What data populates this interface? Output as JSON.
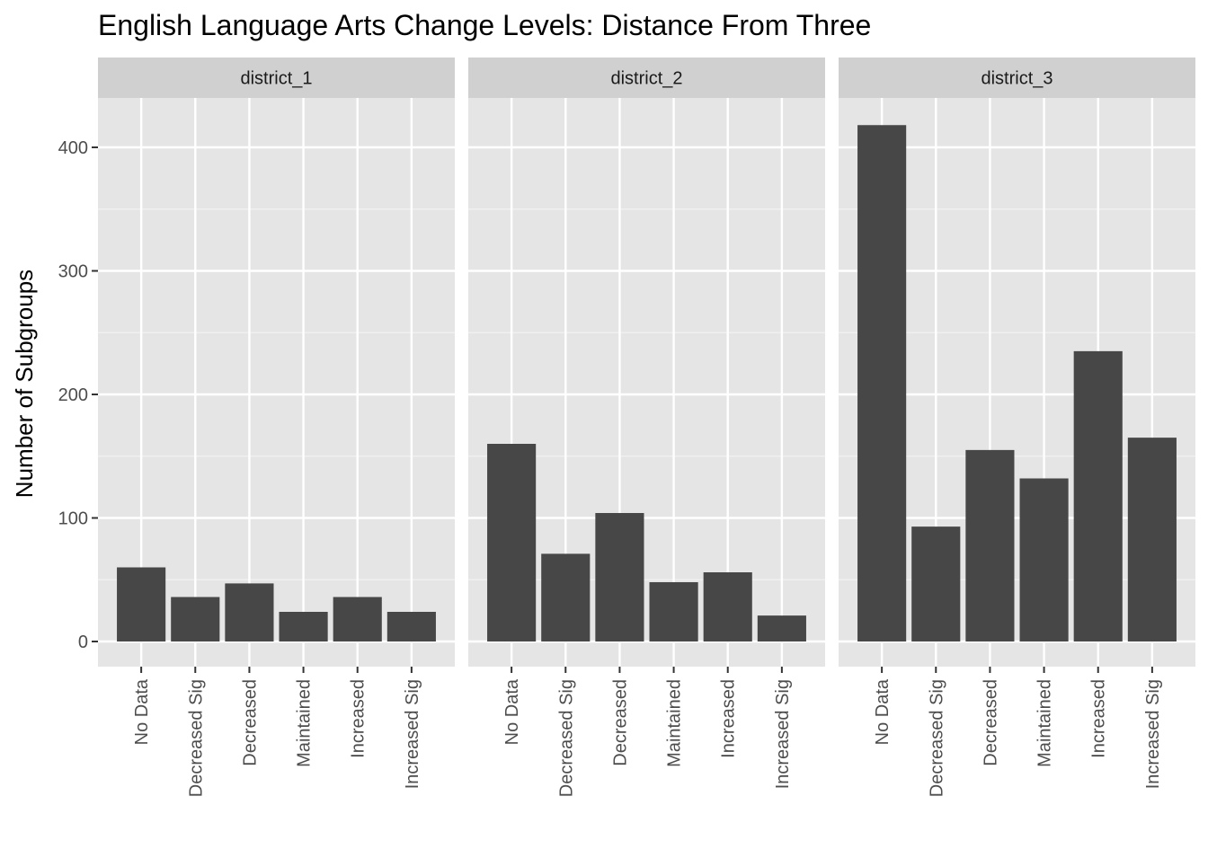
{
  "chart_data": {
    "type": "bar",
    "title": "English Language Arts Change Levels: Distance From Three",
    "xlabel": "",
    "ylabel": "Number of Subgroups",
    "ylim": [
      -21,
      438
    ],
    "yticks": [
      0,
      100,
      200,
      300,
      400
    ],
    "grid": true,
    "categories": [
      "No Data",
      "Decreased Sig",
      "Decreased",
      "Maintained",
      "Increased",
      "Increased Sig"
    ],
    "facets": [
      {
        "name": "district_1",
        "values": [
          60,
          36,
          47,
          24,
          36,
          24
        ]
      },
      {
        "name": "district_2",
        "values": [
          160,
          71,
          104,
          48,
          56,
          21
        ]
      },
      {
        "name": "district_3",
        "values": [
          418,
          93,
          155,
          132,
          235,
          165
        ]
      }
    ],
    "colors": {
      "bar": "#474747",
      "panel_bg": "#e5e5e5",
      "strip_bg": "#d0d0d0",
      "grid_major": "#ffffff",
      "grid_minor": "#f2f2f2",
      "text": "#000000",
      "tick_text": "#4d4d4d",
      "strip_text": "#1a1a1a"
    }
  }
}
